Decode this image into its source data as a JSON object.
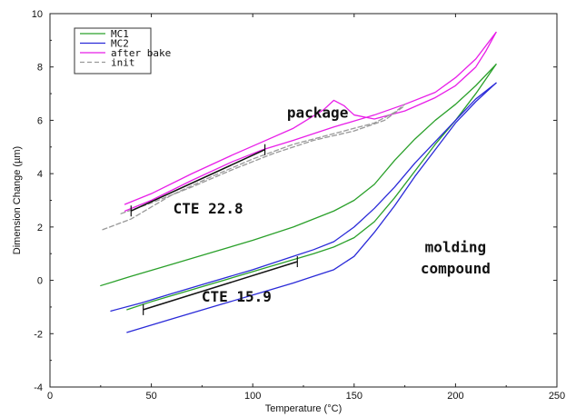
{
  "chart_data": {
    "type": "line",
    "xlabel": "Temperature (°C)",
    "ylabel": "Dimension Change (µm)",
    "xlim": [
      0,
      250
    ],
    "ylim": [
      -4,
      10
    ],
    "xticks": [
      "0",
      "50",
      "100",
      "150",
      "200",
      "250"
    ],
    "yticks": [
      "-4",
      "-2",
      "0",
      "2",
      "4",
      "6",
      "8",
      "10"
    ],
    "grid": false,
    "legend_placement": "top-left",
    "series": [
      {
        "name": "MC1",
        "color": "#2aa02a",
        "dash": "solid",
        "segments": [
          {
            "x": [
              25,
              40,
              60,
              80,
              100,
              120,
              140,
              150,
              160,
              170,
              180,
              190,
              200,
              210,
              220
            ],
            "y": [
              -0.2,
              0.15,
              0.6,
              1.05,
              1.5,
              2.0,
              2.6,
              3.0,
              3.6,
              4.5,
              5.3,
              6.0,
              6.6,
              7.3,
              8.1
            ]
          },
          {
            "x": [
              38,
              50,
              70,
              90,
              110,
              130,
              140,
              150,
              160,
              170,
              180,
              190,
              200,
              210,
              220
            ],
            "y": [
              -1.1,
              -0.8,
              -0.35,
              0.1,
              0.55,
              1.0,
              1.25,
              1.6,
              2.2,
              3.1,
              4.1,
              5.1,
              6.0,
              7.0,
              8.1
            ]
          }
        ]
      },
      {
        "name": "MC2",
        "color": "#2a2ad8",
        "dash": "solid",
        "segments": [
          {
            "x": [
              30,
              45,
              60,
              80,
              100,
              120,
              130,
              140,
              150,
              160,
              170,
              180,
              190,
              200,
              210,
              220
            ],
            "y": [
              -1.15,
              -0.85,
              -0.5,
              -0.05,
              0.4,
              0.9,
              1.15,
              1.45,
              2.0,
              2.7,
              3.5,
              4.4,
              5.2,
              6.0,
              6.8,
              7.4
            ]
          },
          {
            "x": [
              38,
              60,
              80,
              100,
              120,
              130,
              140,
              150,
              160,
              170,
              180,
              190,
              200,
              210,
              220
            ],
            "y": [
              -1.95,
              -1.45,
              -1.0,
              -0.55,
              -0.1,
              0.15,
              0.4,
              0.9,
              1.8,
              2.8,
              3.9,
              4.9,
              5.9,
              6.7,
              7.4
            ]
          }
        ]
      },
      {
        "name": "after bake",
        "color": "#e81ee8",
        "dash": "solid",
        "segments": [
          {
            "x": [
              37,
              50,
              70,
              90,
              105,
              120,
              135,
              140,
              145,
              150,
              160,
              175,
              190,
              200,
              210,
              215,
              220
            ],
            "y": [
              2.85,
              3.25,
              4.0,
              4.7,
              5.2,
              5.7,
              6.4,
              6.75,
              6.55,
              6.2,
              6.05,
              6.35,
              6.85,
              7.3,
              8.0,
              8.6,
              9.3
            ]
          },
          {
            "x": [
              37,
              50,
              70,
              90,
              105,
              120,
              140,
              160,
              175,
              190,
              200,
              210,
              220
            ],
            "y": [
              2.6,
              3.0,
              3.75,
              4.45,
              4.9,
              5.25,
              5.75,
              6.2,
              6.6,
              7.05,
              7.6,
              8.3,
              9.3
            ]
          }
        ]
      },
      {
        "name": "init",
        "color": "#999999",
        "dash": "dashed",
        "segments": [
          {
            "x": [
              26,
              40,
              60,
              80,
              100,
              120,
              140,
              160,
              170,
              175
            ],
            "y": [
              1.9,
              2.3,
              3.2,
              3.9,
              4.55,
              5.1,
              5.5,
              5.9,
              6.3,
              6.6
            ]
          },
          {
            "x": [
              35,
              50,
              70,
              90,
              110,
              130,
              150,
              165,
              175
            ],
            "y": [
              2.5,
              2.9,
              3.5,
              4.15,
              4.75,
              5.25,
              5.6,
              6.0,
              6.55
            ]
          }
        ]
      }
    ],
    "fit_lines": [
      {
        "x": [
          40,
          106
        ],
        "y": [
          2.6,
          4.9
        ],
        "color": "#111111"
      },
      {
        "x": [
          46,
          122
        ],
        "y": [
          -1.1,
          0.7
        ],
        "color": "#111111"
      }
    ],
    "annotations": [
      {
        "text": "package",
        "x": 132,
        "y": 6.1
      },
      {
        "text": "CTE 22.8",
        "x": 78,
        "y": 2.5
      },
      {
        "text": "molding",
        "x": 200,
        "y": 1.05
      },
      {
        "text": "compound",
        "x": 200,
        "y": 0.25
      },
      {
        "text": "CTE 15.9",
        "x": 92,
        "y": -0.8
      }
    ]
  }
}
